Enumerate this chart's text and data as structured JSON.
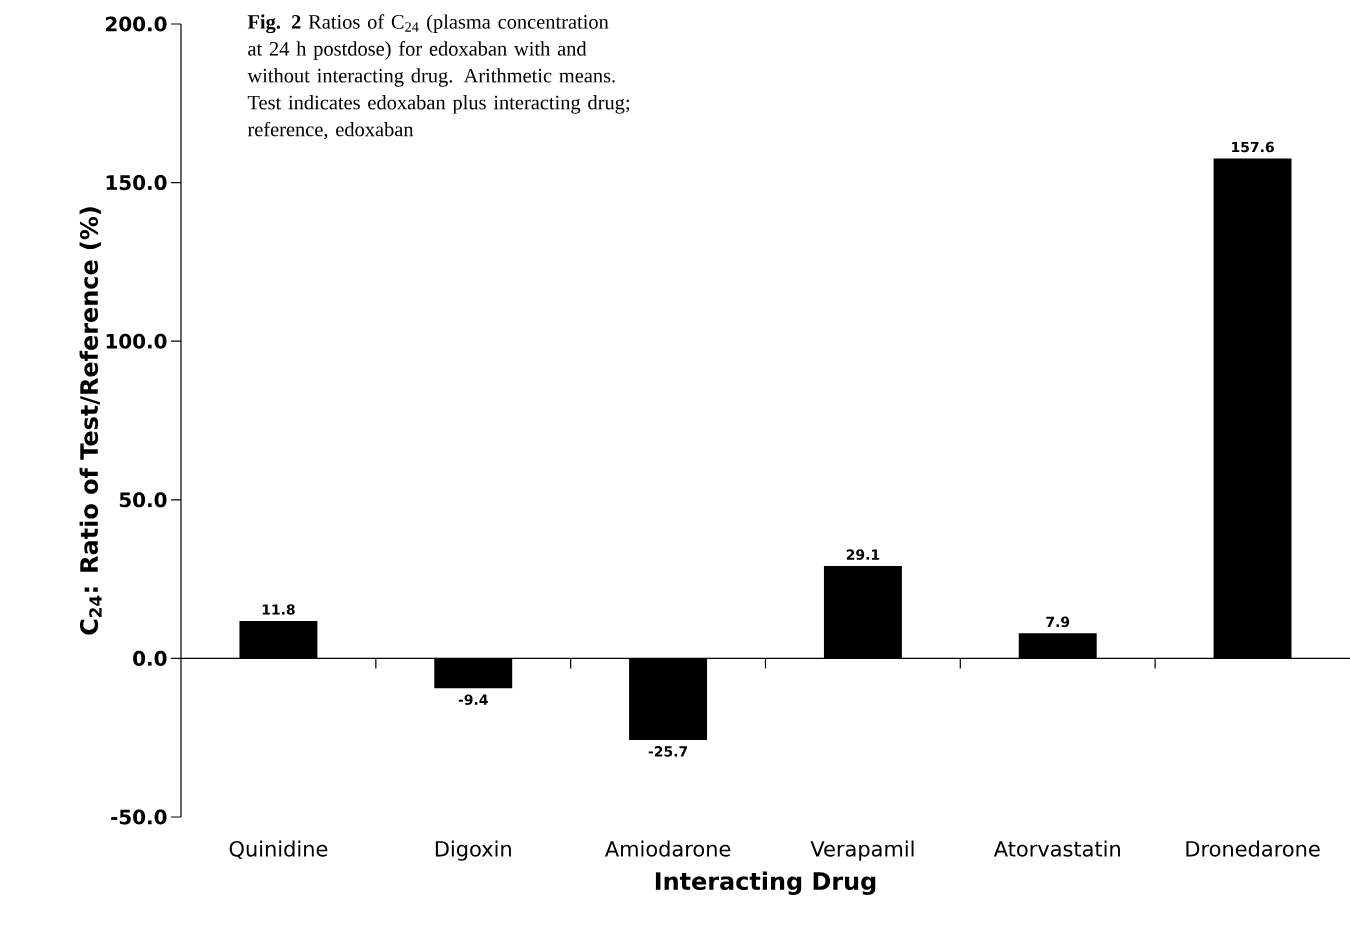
{
  "chart_data": {
    "type": "bar",
    "title": "**Fig. 2**   Ratios of C$_{24}$ (plasma concentration at 24 h postdose) for edoxaban with and without interacting drug. Arithmetic means. Test indicates edoxaban plus interacting drug; reference, edoxaban",
    "xlabel": "Interacting Drug",
    "ylabel": "C$_{24}$: Ratio of Test/Reference (%)",
    "categories": [
      "Quinidine",
      "Digoxin",
      "Amiodarone",
      "Verapamil",
      "Atorvastatin",
      "Dronedarone"
    ],
    "values": [
      11.8,
      -9.4,
      -25.7,
      29.1,
      7.9,
      157.6
    ],
    "color": "#000000",
    "ylim": [
      -50,
      200
    ],
    "yticks": [
      {
        "value": -50,
        "label": "-50.0"
      },
      {
        "value": 0,
        "label": "0.0"
      },
      {
        "value": 50,
        "label": "50.0"
      },
      {
        "value": 100,
        "label": "100.0"
      },
      {
        "value": 150,
        "label": "150.0"
      },
      {
        "value": 200,
        "label": "200.0"
      }
    ],
    "data_labels": true
  }
}
